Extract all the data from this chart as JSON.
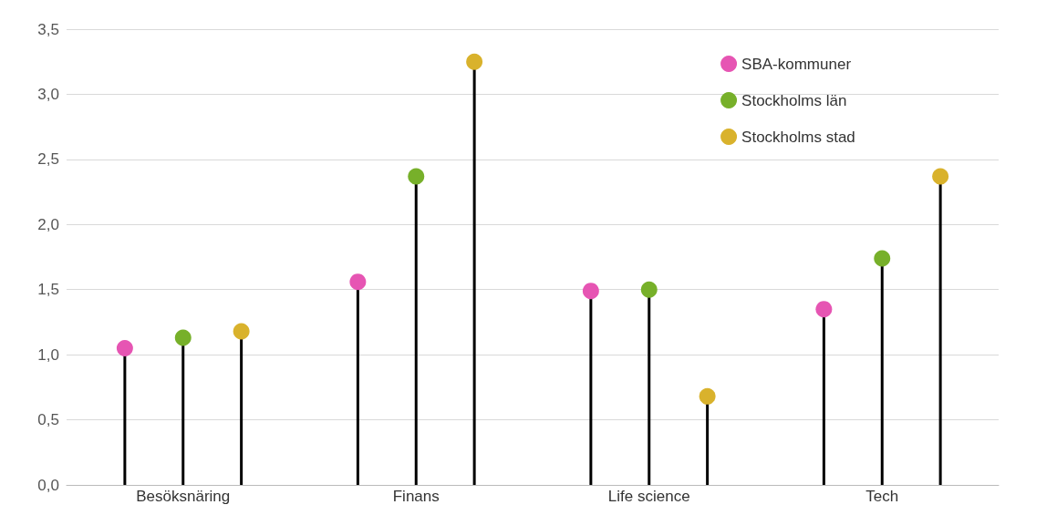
{
  "chart_data": {
    "type": "lollipop",
    "categories": [
      "Besöksnäring",
      "Finans",
      "Life science",
      "Tech"
    ],
    "series": [
      {
        "name": "SBA-kommuner",
        "color": "#e655b3",
        "values": [
          1.05,
          1.56,
          1.49,
          1.35
        ]
      },
      {
        "name": "Stockholms län",
        "color": "#77b02a",
        "values": [
          1.13,
          2.37,
          1.5,
          1.74
        ]
      },
      {
        "name": "Stockholms stad",
        "color": "#d9b22c",
        "values": [
          1.18,
          3.25,
          0.68,
          2.37
        ]
      }
    ],
    "ylim": [
      0,
      3.5
    ],
    "yticks": [
      {
        "value": 0,
        "label": "0,0"
      },
      {
        "value": 0.5,
        "label": "0,5"
      },
      {
        "value": 1,
        "label": "1,0"
      },
      {
        "value": 1.5,
        "label": "1,5"
      },
      {
        "value": 2,
        "label": "2,0"
      },
      {
        "value": 2.5,
        "label": "2,5"
      },
      {
        "value": 3,
        "label": "3,0"
      },
      {
        "value": 3.5,
        "label": "3,5"
      }
    ],
    "grid": "y",
    "legend": "top right",
    "marker": "circle"
  }
}
